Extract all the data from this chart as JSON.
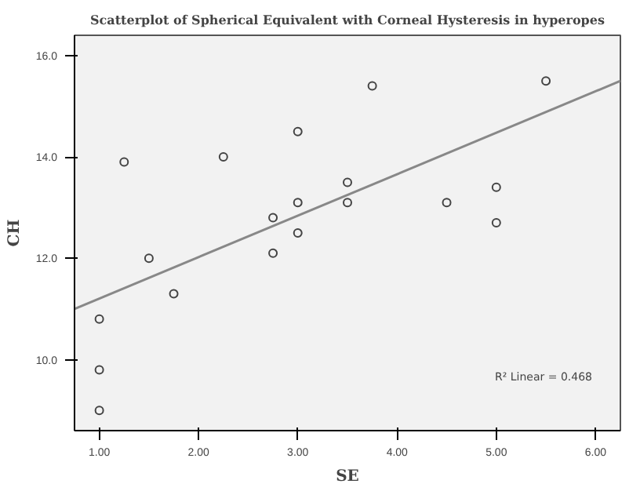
{
  "chart_data": {
    "type": "scatter",
    "title": "Scatterplot of Spherical Equivalent with Corneal Hysteresis in hyperopes",
    "xlabel": "SE",
    "ylabel": "CH",
    "x": [
      1.25,
      2.25,
      3.0,
      3.75,
      5.5,
      3.5,
      3.0,
      3.5,
      4.5,
      5.0,
      2.75,
      3.0,
      5.0,
      2.75,
      1.5,
      1.75,
      1.0,
      1.0,
      1.0
    ],
    "series": [
      {
        "color": "#444444",
        "marker": "circle",
        "values": [
          13.9,
          14.0,
          14.5,
          15.4,
          15.5,
          13.5,
          13.1,
          13.1,
          13.1,
          13.4,
          12.8,
          12.5,
          12.7,
          12.1,
          12.0,
          11.3,
          10.8,
          9.8,
          9.0
        ]
      },
      {
        "type": "line",
        "color": "#888888",
        "x": [
          0.75,
          6.25
        ],
        "values": [
          11.0,
          15.5
        ]
      }
    ],
    "xlim": [
      0.75,
      6.25
    ],
    "ylim": [
      8.6,
      16.4
    ],
    "xticks": [
      {
        "value": 1,
        "label": "1.00"
      },
      {
        "value": 2,
        "label": "2.00"
      },
      {
        "value": 3,
        "label": "3.00"
      },
      {
        "value": 4,
        "label": "4.00"
      },
      {
        "value": 5,
        "label": "5.00"
      },
      {
        "value": 6,
        "label": "6.00"
      }
    ],
    "yticks": [
      {
        "value": 10,
        "label": "10.0"
      },
      {
        "value": 12,
        "label": "12.0"
      },
      {
        "value": 14,
        "label": "14.0"
      },
      {
        "value": 16,
        "label": "16.0"
      }
    ],
    "annotations": [
      "R² Linear = 0.468"
    ],
    "grid": false
  }
}
